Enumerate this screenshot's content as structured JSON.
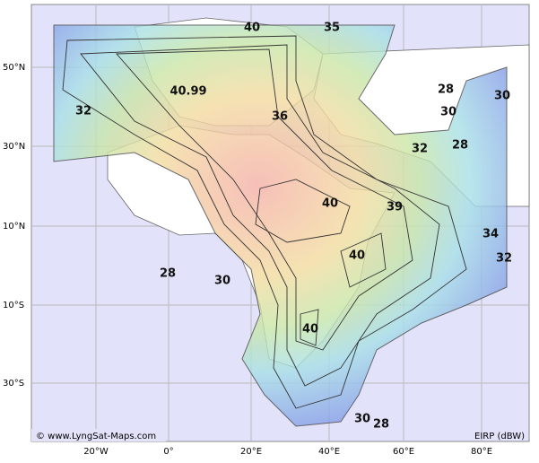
{
  "map": {
    "lat_labels": [
      "50°N",
      "30°N",
      "10°N",
      "10°S",
      "30°S"
    ],
    "lon_labels": [
      "20°W",
      "0°",
      "20°E",
      "40°E",
      "60°E",
      "80°E"
    ],
    "contour_labels": [
      "40",
      "35",
      "40.99",
      "32",
      "36",
      "28",
      "30",
      "30",
      "32",
      "28",
      "40",
      "39",
      "34",
      "40",
      "32",
      "28",
      "30",
      "40",
      "30",
      "28"
    ],
    "credit": "© www.LyngSat-Maps.com",
    "legend": "EIRP (dBW)"
  }
}
